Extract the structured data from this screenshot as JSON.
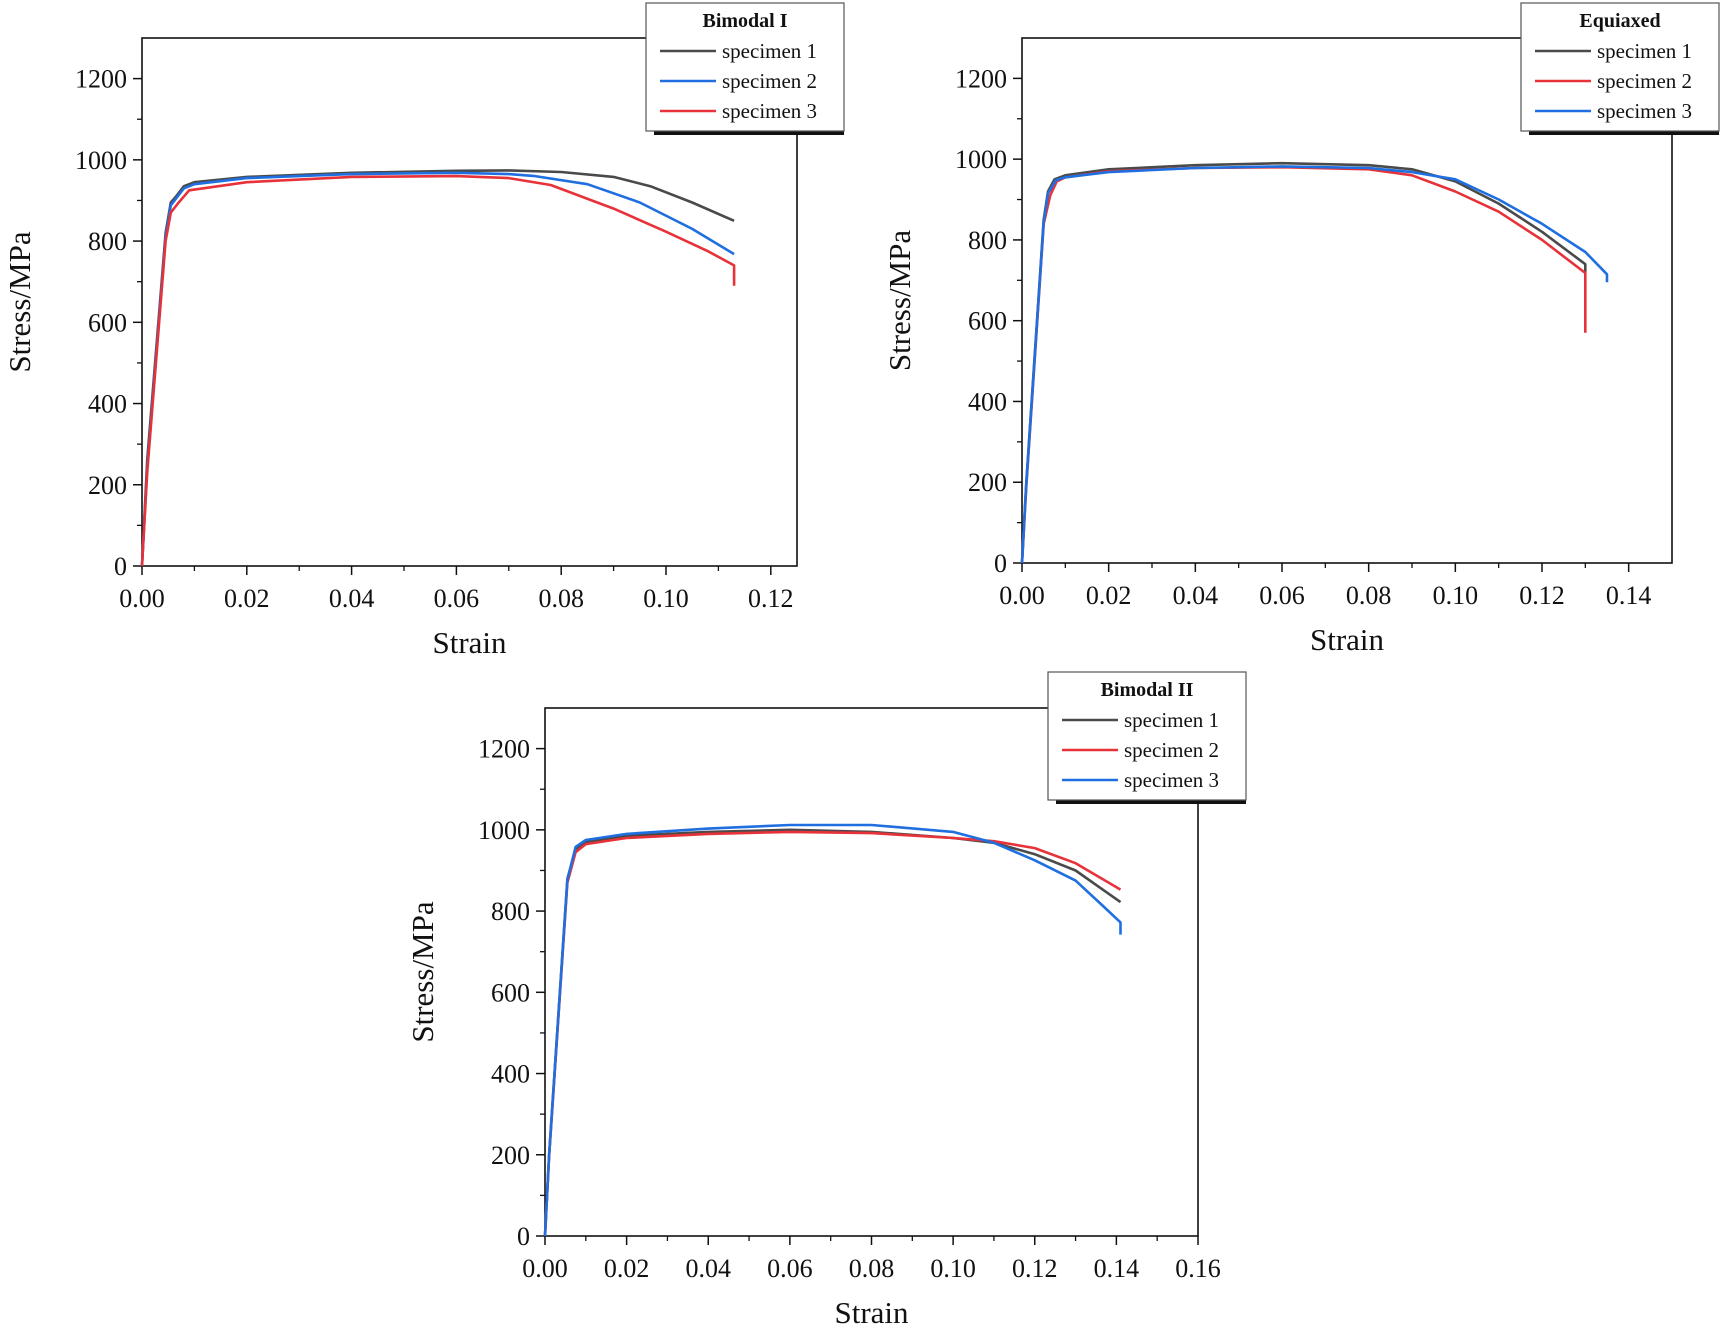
{
  "colors": {
    "black": "#4a4a4a",
    "blue": "#1f6fe0",
    "red": "#e8323a",
    "axis": "#111111"
  },
  "chart_data": [
    {
      "type": "line",
      "xlabel": "Strain",
      "ylabel": "Stress/MPa",
      "xlim": [
        0,
        0.125
      ],
      "ylim": [
        0,
        1300
      ],
      "xticks": [
        "0.00",
        "0.02",
        "0.04",
        "0.06",
        "0.08",
        "0.10",
        "0.12"
      ],
      "yticks": [
        "0",
        "200",
        "400",
        "600",
        "800",
        "1000",
        "1200"
      ],
      "legend": {
        "title": "Bimodal  I",
        "position": "top-right"
      },
      "series": [
        {
          "name": "specimen 1",
          "color": "#4a4a4a",
          "points": [
            [
              0,
              0
            ],
            [
              0.001,
              260
            ],
            [
              0.0045,
              820
            ],
            [
              0.0055,
              895
            ],
            [
              0.0065,
              910
            ],
            [
              0.008,
              935
            ],
            [
              0.01,
              945
            ],
            [
              0.02,
              958
            ],
            [
              0.04,
              968
            ],
            [
              0.06,
              973
            ],
            [
              0.07,
              974
            ],
            [
              0.08,
              970
            ],
            [
              0.09,
              958
            ],
            [
              0.097,
              935
            ],
            [
              0.105,
              895
            ],
            [
              0.113,
              850
            ]
          ]
        },
        {
          "name": "specimen 2",
          "color": "#1f6fe0",
          "points": [
            [
              0,
              0
            ],
            [
              0.001,
              240
            ],
            [
              0.0045,
              810
            ],
            [
              0.0055,
              888
            ],
            [
              0.0065,
              905
            ],
            [
              0.008,
              930
            ],
            [
              0.01,
              940
            ],
            [
              0.02,
              955
            ],
            [
              0.04,
              965
            ],
            [
              0.06,
              968
            ],
            [
              0.07,
              965
            ],
            [
              0.075,
              960
            ],
            [
              0.085,
              940
            ],
            [
              0.095,
              895
            ],
            [
              0.105,
              830
            ],
            [
              0.113,
              768
            ]
          ]
        },
        {
          "name": "specimen 3",
          "color": "#e8323a",
          "points": [
            [
              0,
              0
            ],
            [
              0.001,
              230
            ],
            [
              0.0045,
              800
            ],
            [
              0.0055,
              870
            ],
            [
              0.007,
              895
            ],
            [
              0.009,
              925
            ],
            [
              0.02,
              945
            ],
            [
              0.04,
              958
            ],
            [
              0.06,
              960
            ],
            [
              0.07,
              955
            ],
            [
              0.078,
              938
            ],
            [
              0.09,
              880
            ],
            [
              0.1,
              823
            ],
            [
              0.108,
              775
            ],
            [
              0.113,
              740
            ],
            [
              0.113,
              690
            ]
          ]
        }
      ]
    },
    {
      "type": "line",
      "xlabel": "Strain",
      "ylabel": "Stress/MPa",
      "xlim": [
        0,
        0.15
      ],
      "ylim": [
        0,
        1300
      ],
      "xticks": [
        "0.00",
        "0.02",
        "0.04",
        "0.06",
        "0.08",
        "0.10",
        "0.12",
        "0.14"
      ],
      "yticks": [
        "0",
        "200",
        "400",
        "600",
        "800",
        "1000",
        "1200"
      ],
      "legend": {
        "title": "Equiaxed",
        "position": "top-right"
      },
      "series": [
        {
          "name": "specimen 1",
          "color": "#4a4a4a",
          "points": [
            [
              0,
              0
            ],
            [
              0.001,
              200
            ],
            [
              0.005,
              850
            ],
            [
              0.006,
              920
            ],
            [
              0.0075,
              950
            ],
            [
              0.01,
              960
            ],
            [
              0.02,
              975
            ],
            [
              0.04,
              985
            ],
            [
              0.06,
              990
            ],
            [
              0.08,
              985
            ],
            [
              0.09,
              975
            ],
            [
              0.1,
              945
            ],
            [
              0.11,
              890
            ],
            [
              0.12,
              820
            ],
            [
              0.13,
              740
            ],
            [
              0.13,
              720
            ]
          ]
        },
        {
          "name": "specimen 2",
          "color": "#e8323a",
          "points": [
            [
              0,
              0
            ],
            [
              0.001,
              190
            ],
            [
              0.005,
              840
            ],
            [
              0.0065,
              910
            ],
            [
              0.008,
              945
            ],
            [
              0.01,
              955
            ],
            [
              0.02,
              970
            ],
            [
              0.04,
              978
            ],
            [
              0.06,
              980
            ],
            [
              0.08,
              975
            ],
            [
              0.09,
              960
            ],
            [
              0.1,
              920
            ],
            [
              0.11,
              870
            ],
            [
              0.12,
              800
            ],
            [
              0.13,
              718
            ],
            [
              0.13,
              570
            ]
          ]
        },
        {
          "name": "specimen 3",
          "color": "#1f6fe0",
          "points": [
            [
              0,
              0
            ],
            [
              0.001,
              195
            ],
            [
              0.005,
              845
            ],
            [
              0.006,
              915
            ],
            [
              0.0078,
              948
            ],
            [
              0.01,
              955
            ],
            [
              0.02,
              968
            ],
            [
              0.04,
              978
            ],
            [
              0.06,
              982
            ],
            [
              0.08,
              978
            ],
            [
              0.09,
              968
            ],
            [
              0.1,
              950
            ],
            [
              0.11,
              900
            ],
            [
              0.12,
              840
            ],
            [
              0.13,
              770
            ],
            [
              0.135,
              715
            ],
            [
              0.135,
              695
            ]
          ]
        }
      ]
    },
    {
      "type": "line",
      "xlabel": "Strain",
      "ylabel": "Stress/MPa",
      "xlim": [
        0,
        0.16
      ],
      "ylim": [
        0,
        1300
      ],
      "xticks": [
        "0.00",
        "0.02",
        "0.04",
        "0.06",
        "0.08",
        "0.10",
        "0.12",
        "0.14",
        "0.16"
      ],
      "yticks": [
        "0",
        "200",
        "400",
        "600",
        "800",
        "1000",
        "1200"
      ],
      "legend": {
        "title": "Bimodal  II",
        "position": "top-right"
      },
      "series": [
        {
          "name": "specimen 1",
          "color": "#4a4a4a",
          "points": [
            [
              0,
              0
            ],
            [
              0.001,
              200
            ],
            [
              0.0055,
              880
            ],
            [
              0.0075,
              950
            ],
            [
              0.01,
              970
            ],
            [
              0.02,
              985
            ],
            [
              0.04,
              995
            ],
            [
              0.06,
              1000
            ],
            [
              0.08,
              995
            ],
            [
              0.1,
              980
            ],
            [
              0.11,
              968
            ],
            [
              0.12,
              940
            ],
            [
              0.13,
              900
            ],
            [
              0.141,
              822
            ]
          ]
        },
        {
          "name": "specimen 2",
          "color": "#e8323a",
          "points": [
            [
              0,
              0
            ],
            [
              0.001,
              195
            ],
            [
              0.0055,
              870
            ],
            [
              0.0075,
              945
            ],
            [
              0.01,
              965
            ],
            [
              0.02,
              980
            ],
            [
              0.04,
              990
            ],
            [
              0.06,
              995
            ],
            [
              0.08,
              992
            ],
            [
              0.1,
              980
            ],
            [
              0.11,
              972
            ],
            [
              0.12,
              955
            ],
            [
              0.13,
              918
            ],
            [
              0.141,
              853
            ]
          ]
        },
        {
          "name": "specimen 3",
          "color": "#1f6fe0",
          "points": [
            [
              0,
              0
            ],
            [
              0.001,
              198
            ],
            [
              0.0055,
              878
            ],
            [
              0.0075,
              958
            ],
            [
              0.01,
              975
            ],
            [
              0.02,
              990
            ],
            [
              0.04,
              1003
            ],
            [
              0.06,
              1012
            ],
            [
              0.08,
              1012
            ],
            [
              0.1,
              995
            ],
            [
              0.11,
              968
            ],
            [
              0.12,
              925
            ],
            [
              0.13,
              875
            ],
            [
              0.137,
              810
            ],
            [
              0.141,
              772
            ],
            [
              0.141,
              742
            ]
          ]
        }
      ]
    }
  ]
}
